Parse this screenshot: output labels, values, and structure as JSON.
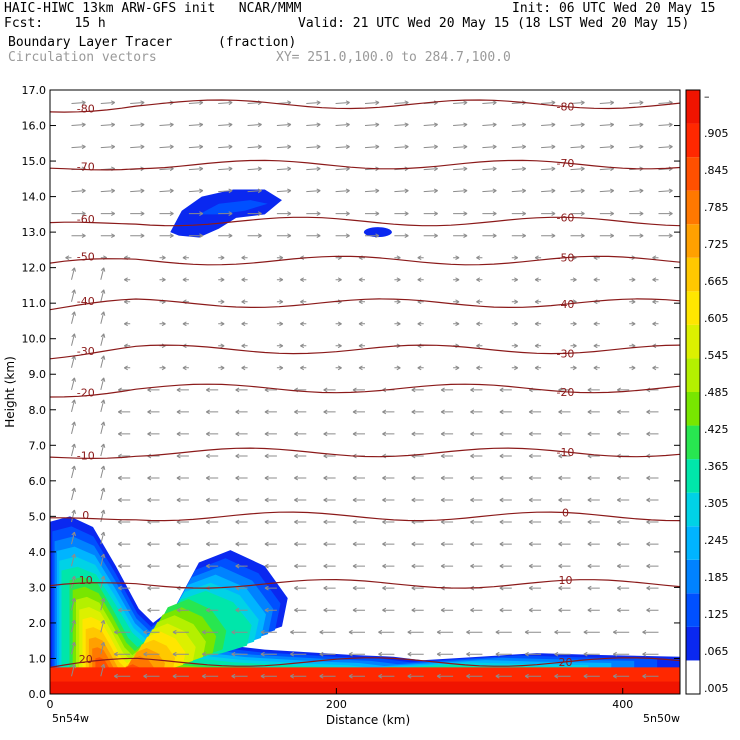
{
  "header": {
    "line1_left": "HAIC-HIWC 13km ARW-GFS init   NCAR/MMM",
    "line1_right": "Init: 06 UTC Wed 20 May 15",
    "line2_left": "Fcst:    15 h",
    "line2_right": "Valid: 21 UTC Wed 20 May 15 (18 LST Wed 20 May 15)",
    "field_name": "Boundary Layer Tracer",
    "field_units": "(fraction)",
    "vector_name": "Circulation vectors",
    "xy_range": "XY= 251.0,100.0 to 284.7,100.0"
  },
  "chart_data": {
    "type": "heatmap",
    "xlabel": "Distance (km)",
    "ylabel": "Height (km)",
    "xlim": [
      0,
      440
    ],
    "ylim": [
      0,
      17
    ],
    "x_ticks": [
      "0",
      "200",
      "400"
    ],
    "x_tick_values": [
      0,
      200,
      400
    ],
    "x_left_label": "5n54w",
    "x_right_label": "5n50w",
    "y_ticks": [
      "0.0",
      "1.0",
      "2.0",
      "3.0",
      "4.0",
      "5.0",
      "6.0",
      "7.0",
      "8.0",
      "9.0",
      "10.0",
      "11.0",
      "12.0",
      "13.0",
      "14.0",
      "15.0",
      "16.0",
      "17.0"
    ],
    "colorbar": {
      "labels": [
        ".005",
        ".065",
        ".125",
        ".185",
        ".245",
        ".305",
        ".365",
        ".425",
        ".485",
        ".545",
        ".605",
        ".665",
        ".725",
        ".785",
        ".845",
        ".905",
        "–"
      ],
      "colors": [
        "#ffffff",
        "#0a28f0",
        "#0050ff",
        "#0082ff",
        "#00b4ff",
        "#00d2e6",
        "#00e6aa",
        "#28e650",
        "#78e600",
        "#b4f000",
        "#dcf000",
        "#ffe600",
        "#ffc800",
        "#ffa000",
        "#ff7800",
        "#ff5000",
        "#ff2800",
        "#f01400"
      ]
    },
    "temperature_contours": {
      "color": "#8b1a1a",
      "values": [
        20,
        10,
        0,
        -10,
        -20,
        -30,
        -40,
        -50,
        -60,
        -70,
        -80
      ],
      "labels": [
        "20",
        "10",
        "0",
        "-10",
        "-20",
        "-30",
        "-40",
        "-50",
        "-60",
        "-70",
        "-80"
      ],
      "heights_km": [
        0.9,
        3.1,
        5.0,
        6.8,
        8.6,
        9.7,
        11.0,
        12.2,
        13.3,
        14.9,
        16.6
      ]
    },
    "tracer_regions": [
      {
        "name": "boundary layer plume",
        "max_fraction": 0.95
      },
      {
        "name": "upper level patch",
        "max_fraction": 0.1
      }
    ]
  }
}
